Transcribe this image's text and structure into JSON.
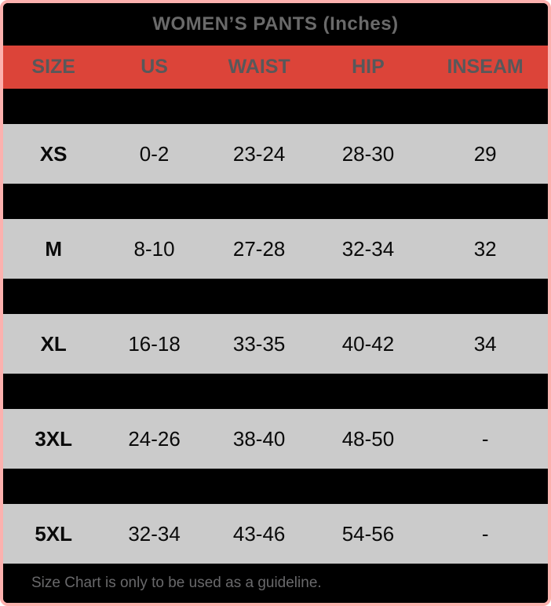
{
  "title": "WOMEN’S PANTS (Inches)",
  "footer": {
    "note": "Size Chart is only to be used as a guideline."
  },
  "colors": {
    "frame_border": "#FCB1AE",
    "background": "#000000",
    "header_background": "#DC4439",
    "header_text": "#58585A",
    "title_text": "#6A6A6A",
    "light_row_background": "#CBCBCB",
    "data_text": "#0a0a0a",
    "footer_text": "#69696B"
  },
  "table": {
    "columns": [
      "SIZE",
      "US",
      "WAIST",
      "HIP",
      "INSEAM"
    ],
    "rows": [
      {
        "style": "hidden",
        "values": [
          "",
          "",
          "",
          "",
          ""
        ]
      },
      {
        "style": "light",
        "values": [
          "XS",
          "0-2",
          "23-24",
          "28-30",
          "29"
        ]
      },
      {
        "style": "hidden",
        "values": [
          "",
          "",
          "",
          "",
          ""
        ]
      },
      {
        "style": "light",
        "values": [
          "M",
          "8-10",
          "27-28",
          "32-34",
          "32"
        ]
      },
      {
        "style": "hidden",
        "values": [
          "",
          "",
          "",
          "",
          ""
        ]
      },
      {
        "style": "light",
        "values": [
          "XL",
          "16-18",
          "33-35",
          "40-42",
          "34"
        ]
      },
      {
        "style": "hidden",
        "values": [
          "",
          "",
          "",
          "",
          ""
        ]
      },
      {
        "style": "light",
        "values": [
          "3XL",
          "24-26",
          "38-40",
          "48-50",
          "-"
        ]
      },
      {
        "style": "hidden",
        "values": [
          "",
          "",
          "",
          "",
          ""
        ]
      },
      {
        "style": "light",
        "values": [
          "5XL",
          "32-34",
          "43-46",
          "54-56",
          "-"
        ]
      }
    ]
  },
  "chart_data": {
    "type": "table",
    "title": "WOMEN’S PANTS (Inches)",
    "columns": [
      "SIZE",
      "US",
      "WAIST",
      "HIP",
      "INSEAM"
    ],
    "visible_rows": [
      [
        "XS",
        "0-2",
        "23-24",
        "28-30",
        "29"
      ],
      [
        "M",
        "8-10",
        "27-28",
        "32-34",
        "32"
      ],
      [
        "XL",
        "16-18",
        "33-35",
        "40-42",
        "34"
      ],
      [
        "3XL",
        "24-26",
        "38-40",
        "48-50",
        "-"
      ],
      [
        "5XL",
        "32-34",
        "43-46",
        "54-56",
        "-"
      ]
    ],
    "hidden_black_rows_between_each_visible_row": true,
    "note": "Size Chart is only to be used as a guideline."
  }
}
